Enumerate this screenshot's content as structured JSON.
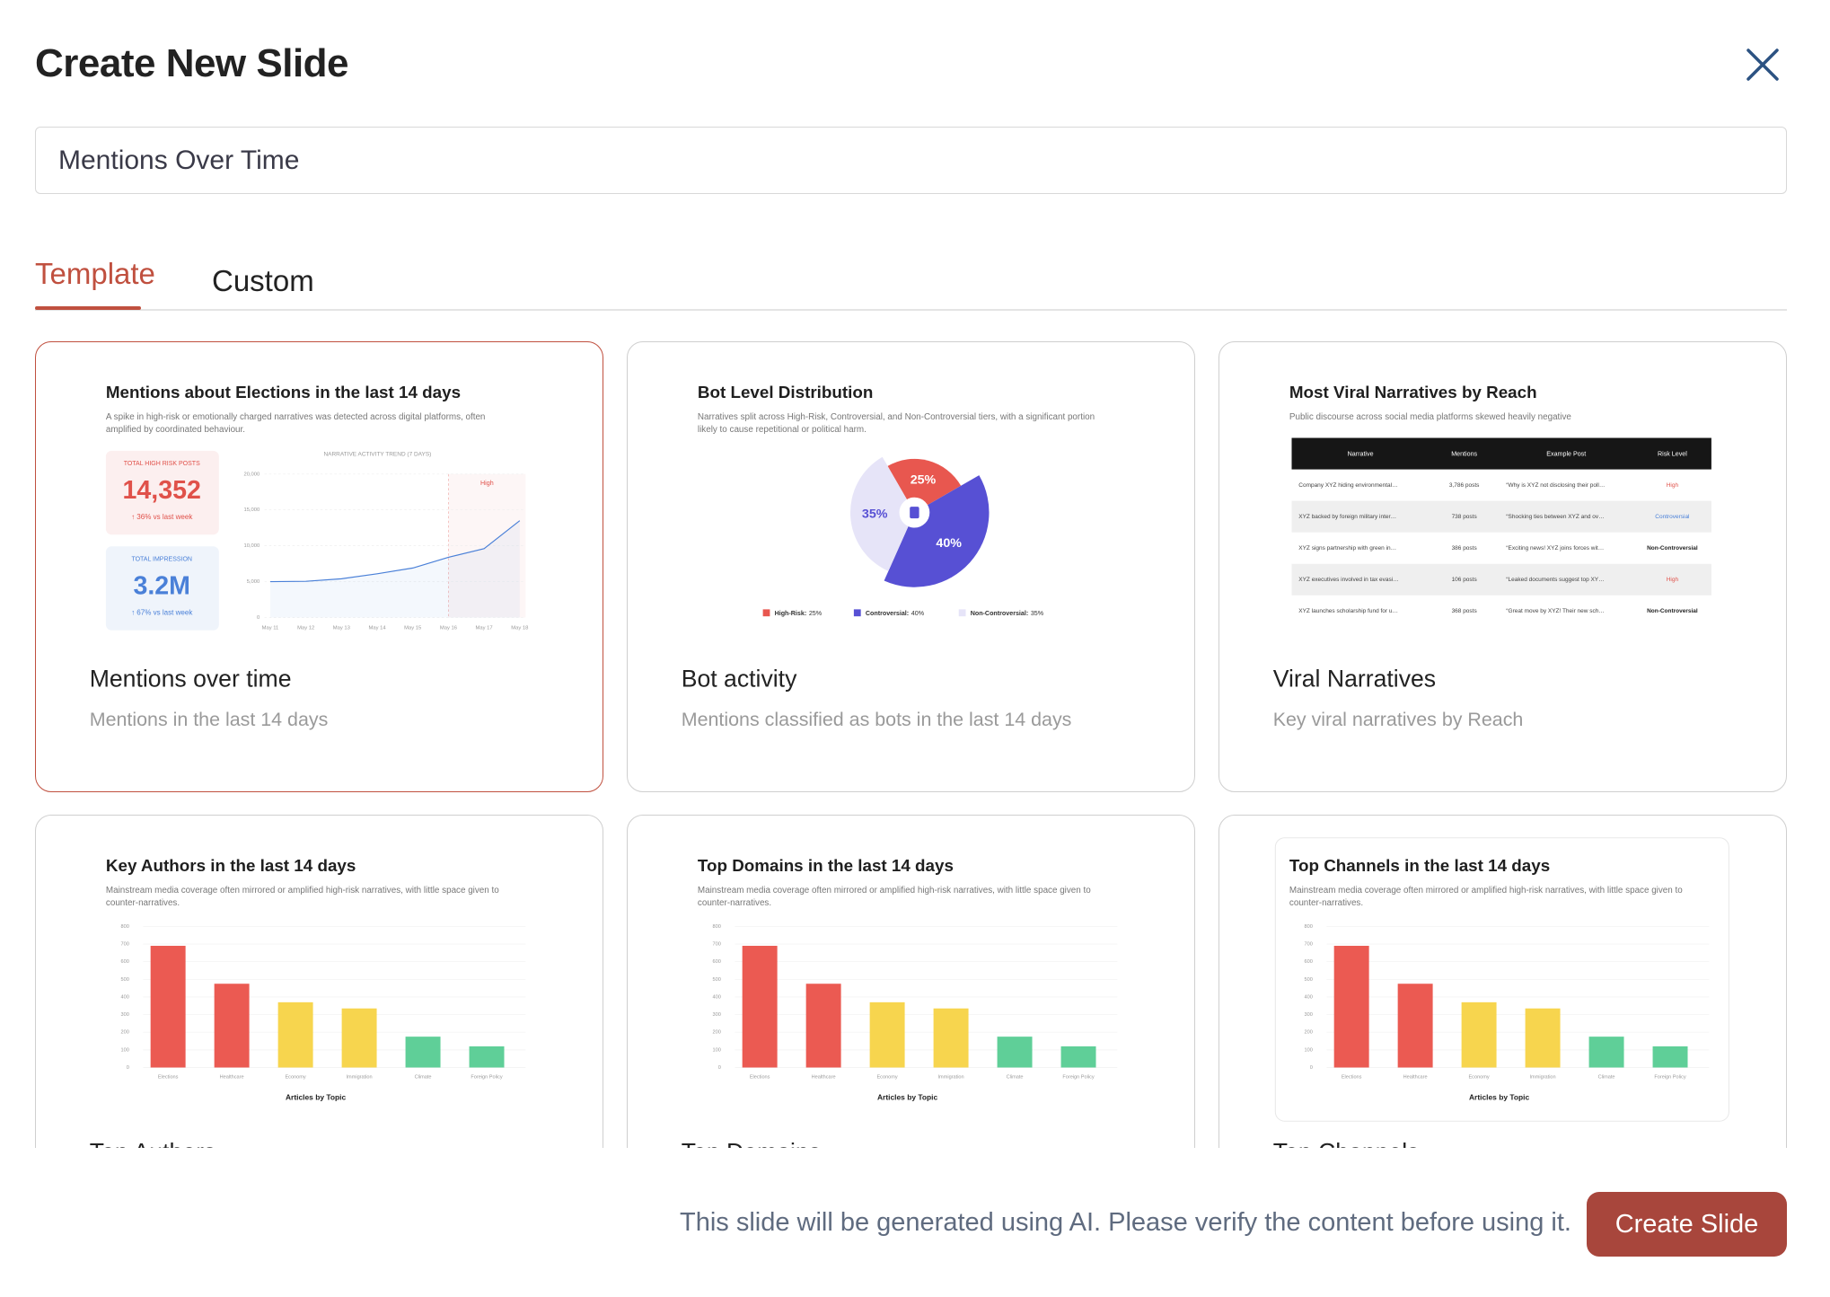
{
  "header": {
    "title": "Create New Slide"
  },
  "input": {
    "value": "Mentions Over Time"
  },
  "tabs": {
    "items": [
      "Template",
      "Custom"
    ],
    "active": 0
  },
  "selected_card": 0,
  "cards": [
    {
      "name": "Mentions over time",
      "description": "Mentions in the last 14 days",
      "thumbnail": {
        "type": "kpi_line",
        "title": "Mentions about Elections in the last 14 days",
        "subtitle": "A spike in high-risk or emotionally charged narratives was detected across digital platforms, often amplified by coordinated behaviour.",
        "kpis": [
          {
            "label": "TOTAL HIGH RISK POSTS",
            "value": "14,352",
            "change": "↑ 36% vs last week",
            "color": "#e0514a"
          },
          {
            "label": "TOTAL IMPRESSION",
            "value": "3.2M",
            "change": "↑ 67% vs last week",
            "color": "#4a80d8"
          }
        ],
        "chart": {
          "title": "NARRATIVE ACTIVITY TREND (7 DAYS)",
          "categories": [
            "May 11",
            "May 12",
            "May 13",
            "May 14",
            "May 15",
            "May 16",
            "May 17",
            "May 18"
          ],
          "values": [
            5000,
            5050,
            5400,
            6100,
            6900,
            8400,
            9600,
            13500
          ],
          "color": "#4a80d8",
          "ylim": [
            0,
            20000
          ],
          "yticks": [
            0,
            {
              "value": 5000,
              "label": "5,000"
            },
            {
              "value": 10000,
              "label": "10,000"
            },
            {
              "value": 15000,
              "label": "15,000"
            },
            {
              "value": 20000,
              "label": "20,000"
            }
          ],
          "annotation": {
            "text": "High",
            "from": "May 16"
          }
        }
      }
    },
    {
      "name": "Bot activity",
      "description": "Mentions classified as bots in the last 14 days",
      "thumbnail": {
        "type": "pie",
        "title": "Bot Level Distribution",
        "subtitle": "Narratives split across High-Risk, Controversial, and Non-Controversial tiers, with a significant portion likely to cause repetitional or political harm.",
        "categories": [
          "High-Risk:",
          "Controversial:",
          "Non-Controversial:"
        ],
        "values": [
          25,
          40,
          35
        ],
        "value_labels": [
          "25%",
          "40%",
          "35%"
        ],
        "colors": [
          "#e8574f",
          "#5750d4",
          "#e6e4f8"
        ]
      }
    },
    {
      "name": "Viral Narratives",
      "description": "Key viral narratives by Reach",
      "thumbnail": {
        "type": "table",
        "title": "Most Viral Narratives by Reach",
        "subtitle": "Public discourse across social media platforms skewed heavily negative",
        "columns": [
          "Narrative",
          "Mentions",
          "Example Post",
          "Risk Level"
        ],
        "rows": [
          [
            "Company XYZ hiding environmental…",
            "3,786 posts",
            "“Why is XYZ not disclosing their poll…",
            "High"
          ],
          [
            "XYZ backed by foreign military inter…",
            "738 posts",
            "“Shocking ties between XYZ and ov…",
            "Controversial"
          ],
          [
            "XYZ signs partnership with green in…",
            "386 posts",
            "“Exciting news! XYZ joins forces wit…",
            "Non-Controversial"
          ],
          [
            "XYZ executives involved in tax evasi…",
            "106 posts",
            "“Leaked documents suggest top XY…",
            "High"
          ],
          [
            "XYZ launches scholarship fund for u…",
            "368 posts",
            "“Great move by XYZ! Their new sch…",
            "Non-Controversial"
          ]
        ],
        "risk_colors": {
          "High": "#e0514a",
          "Controversial": "#4a80d8",
          "Non-Controversial": "#222222"
        }
      }
    },
    {
      "name": "Top Authors",
      "thumbnail": {
        "type": "bar",
        "title": "Key Authors in the last 14 days",
        "subtitle": "Mainstream media coverage often mirrored or amplified high-risk narratives, with little space given to counter-narratives.",
        "categories": [
          "Elections",
          "Healthcare",
          "Economy",
          "Immigration",
          "Climate",
          "Foreign Policy"
        ],
        "values": [
          690,
          475,
          370,
          335,
          175,
          120
        ],
        "colors": [
          "#eb5a52",
          "#eb5a52",
          "#f7d54e",
          "#f7d54e",
          "#5fcf98",
          "#5fcf98"
        ],
        "ylim": [
          0,
          800
        ],
        "yticks": [
          0,
          100,
          200,
          300,
          400,
          500,
          600,
          700,
          800
        ],
        "x_label": "Articles by Topic",
        "framed": false
      }
    },
    {
      "name": "Top Domains",
      "thumbnail": {
        "type": "bar",
        "title": "Top Domains in the last 14 days",
        "subtitle": "Mainstream media coverage often mirrored or amplified high-risk narratives, with little space given to counter-narratives.",
        "categories": [
          "Elections",
          "Healthcare",
          "Economy",
          "Immigration",
          "Climate",
          "Foreign Policy"
        ],
        "values": [
          690,
          475,
          370,
          335,
          175,
          120
        ],
        "colors": [
          "#eb5a52",
          "#eb5a52",
          "#f7d54e",
          "#f7d54e",
          "#5fcf98",
          "#5fcf98"
        ],
        "ylim": [
          0,
          800
        ],
        "yticks": [
          0,
          100,
          200,
          300,
          400,
          500,
          600,
          700,
          800
        ],
        "x_label": "Articles by Topic",
        "framed": false
      }
    },
    {
      "name": "Top Channels",
      "thumbnail": {
        "type": "bar",
        "title": "Top Channels in the last 14 days",
        "subtitle": "Mainstream media coverage often mirrored or amplified high-risk narratives, with little space given to counter-narratives.",
        "categories": [
          "Elections",
          "Healthcare",
          "Economy",
          "Immigration",
          "Climate",
          "Foreign Policy"
        ],
        "values": [
          690,
          475,
          370,
          335,
          175,
          120
        ],
        "colors": [
          "#eb5a52",
          "#eb5a52",
          "#f7d54e",
          "#f7d54e",
          "#5fcf98",
          "#5fcf98"
        ],
        "ylim": [
          0,
          800
        ],
        "yticks": [
          0,
          100,
          200,
          300,
          400,
          500,
          600,
          700,
          800
        ],
        "x_label": "Articles by Topic",
        "framed": true
      }
    }
  ],
  "footer": {
    "note": "This slide will be generated using AI. Please verify the content before using it.",
    "button": "Create Slide"
  }
}
